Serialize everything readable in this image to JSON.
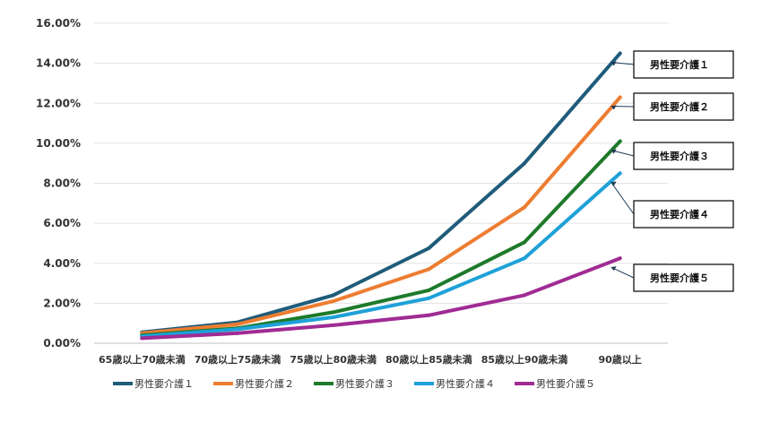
{
  "chart_data": {
    "type": "line",
    "title": "",
    "xlabel": "",
    "ylabel": "",
    "categories": [
      "65歳以上70歳未満",
      "70歳以上75歳未満",
      "75歳以上80歳未満",
      "80歳以上85歳未満",
      "85歳以上90歳未満",
      "90歳以上"
    ],
    "y_ticks": [
      "0.00%",
      "2.00%",
      "4.00%",
      "6.00%",
      "8.00%",
      "10.00%",
      "12.00%",
      "14.00%",
      "16.00%"
    ],
    "ylim": [
      0,
      16
    ],
    "y_unit": "%",
    "grid": true,
    "legend_position": "bottom",
    "series": [
      {
        "name": "男性要介護１",
        "color": "#1f5c7a",
        "values": [
          0.55,
          1.05,
          2.4,
          4.75,
          9.0,
          14.5
        ],
        "callout": "男性要介護１"
      },
      {
        "name": "男性要介護２",
        "color": "#ed7d31",
        "values": [
          0.5,
          0.95,
          2.1,
          3.7,
          6.8,
          12.3
        ],
        "callout": "男性要介護２"
      },
      {
        "name": "男性要介護３",
        "color": "#1e7a2b",
        "values": [
          0.4,
          0.75,
          1.55,
          2.65,
          5.05,
          10.1
        ],
        "callout": "男性要介護３"
      },
      {
        "name": "男性要介護４",
        "color": "#1ea1d8",
        "values": [
          0.35,
          0.7,
          1.3,
          2.25,
          4.25,
          8.5
        ],
        "callout": "男性要介護４"
      },
      {
        "name": "男性要介護５",
        "color": "#a02b93",
        "values": [
          0.25,
          0.5,
          0.9,
          1.4,
          2.4,
          4.25
        ],
        "callout": "男性要介護５"
      }
    ]
  }
}
